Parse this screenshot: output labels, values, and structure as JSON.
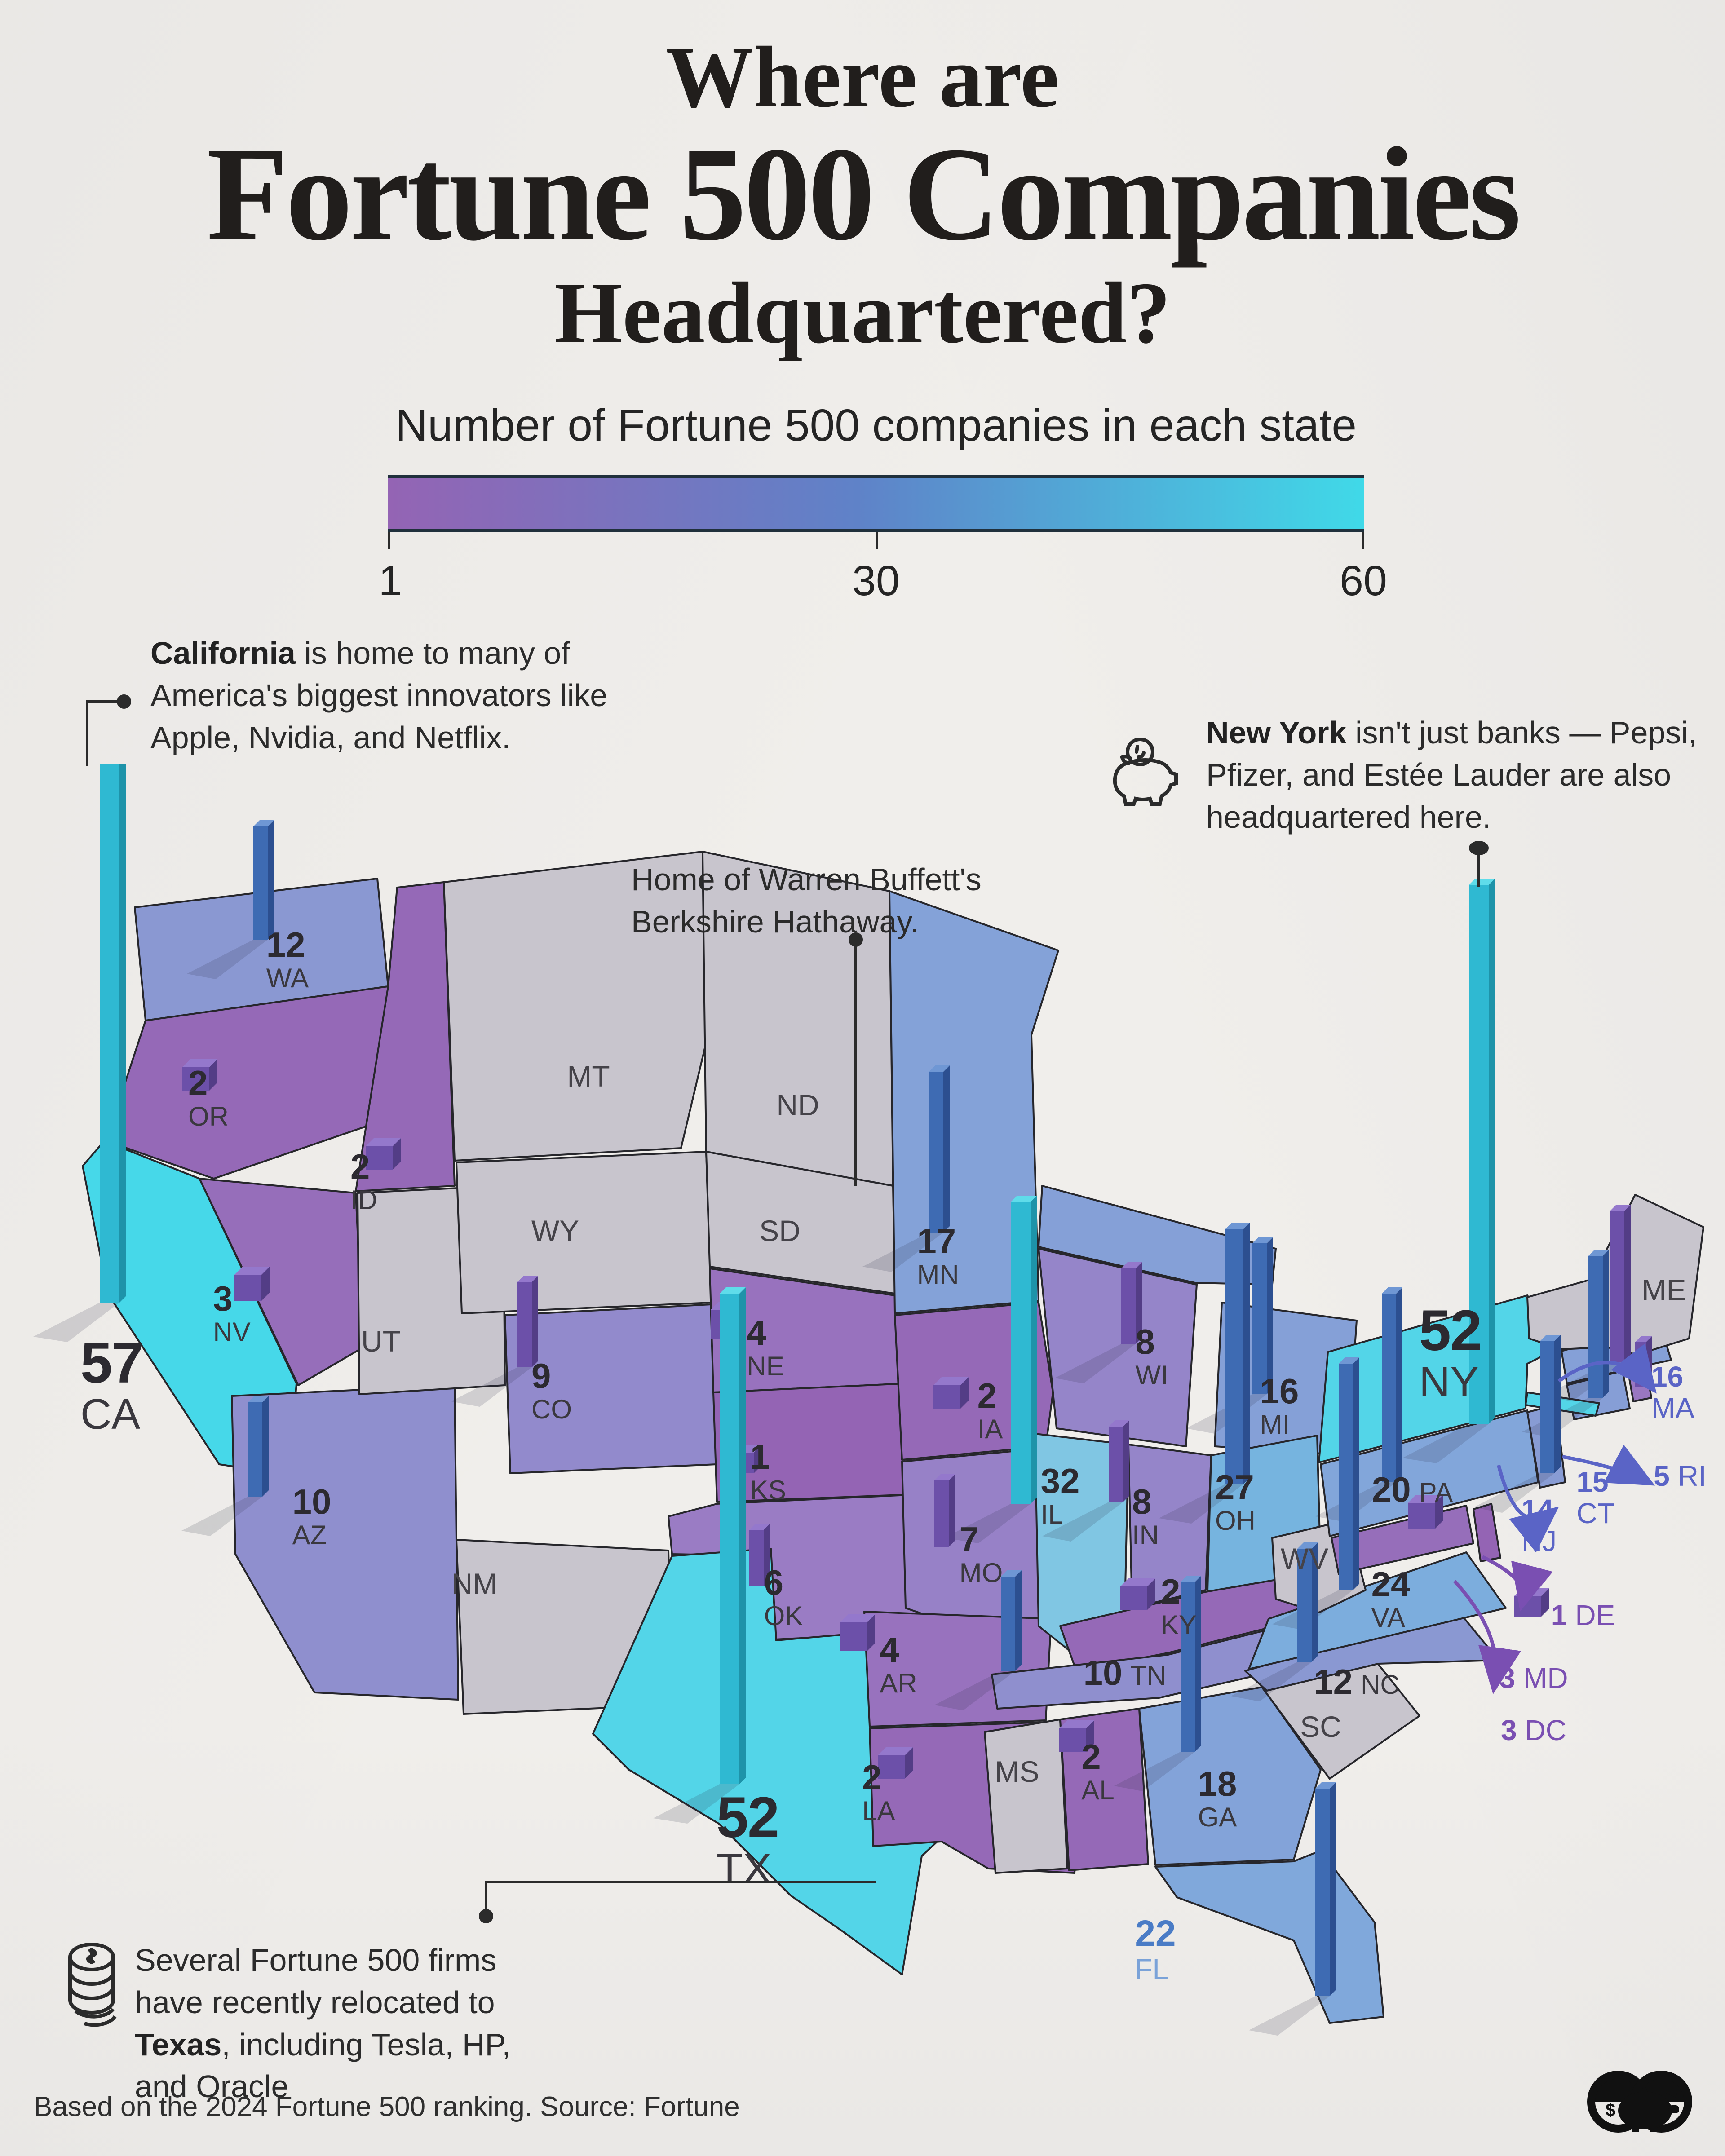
{
  "title": {
    "line1": "Where are",
    "line2": "Fortune 500 Companies",
    "line3": "Headquartered?"
  },
  "legend": {
    "label": "Number of Fortune 500 companies in each state",
    "tick_min": "1",
    "tick_mid": "30",
    "tick_max": "60",
    "gradient_start": "#9464B4",
    "gradient_mid": "#5F82C8",
    "gradient_end": "#40D9E8"
  },
  "annotations": {
    "california": {
      "lead": "California",
      "rest": " is home to many of America's biggest innovators like Apple, Nvidia, and Netflix."
    },
    "new_york": {
      "lead": "New York",
      "rest": " isn't just banks — Pepsi, Pfizer, and Estée Lauder are also headquartered here.",
      "icon": "piggy-bank"
    },
    "nebraska": {
      "text": "Home of Warren Buffett's Berkshire Hathaway."
    },
    "texas": {
      "pre": "Several Fortune 500 firms have recently relocated to ",
      "lead": "Texas",
      "post": ", including Tesla, HP, and Oracle",
      "icon": "coin-stack"
    }
  },
  "footer": {
    "source": "Based on the 2024 Fortune 500 ranking. Source: Fortune",
    "logo": "binoculars-piggy-bank-logo"
  },
  "colors": {
    "background": "#F0EEEB",
    "title": "#211E1C",
    "text": "#2B2B2B",
    "gray_state": "#C8C5CD",
    "state_border": "#26262B",
    "accent_blue": "#5A64C6",
    "accent_purple": "#7A4FB2",
    "fl_blue": "#4A7CC6",
    "bar_purple": "#6C50A9",
    "bar_blue": "#3E6BB3",
    "bar_cyan": "#2FB9D2"
  },
  "chart_data": {
    "type": "choropleth-3d-bar-map",
    "region": "United States",
    "title": "Number of Fortune 500 companies in each state",
    "colorbar": {
      "min": 1,
      "mid": 30,
      "max": 60,
      "min_color": "#9464B4",
      "max_color": "#40D9E8"
    },
    "states": [
      {
        "abbr": "WA",
        "value": 12
      },
      {
        "abbr": "OR",
        "value": 2
      },
      {
        "abbr": "ID",
        "value": 2
      },
      {
        "abbr": "NV",
        "value": 3
      },
      {
        "abbr": "CA",
        "value": 57
      },
      {
        "abbr": "AZ",
        "value": 10
      },
      {
        "abbr": "UT",
        "value": null
      },
      {
        "abbr": "MT",
        "value": null
      },
      {
        "abbr": "WY",
        "value": null
      },
      {
        "abbr": "CO",
        "value": 9
      },
      {
        "abbr": "NM",
        "value": null
      },
      {
        "abbr": "ND",
        "value": null
      },
      {
        "abbr": "SD",
        "value": null
      },
      {
        "abbr": "NE",
        "value": 4
      },
      {
        "abbr": "KS",
        "value": 1
      },
      {
        "abbr": "OK",
        "value": 6
      },
      {
        "abbr": "TX",
        "value": 52
      },
      {
        "abbr": "MN",
        "value": 17
      },
      {
        "abbr": "IA",
        "value": 2
      },
      {
        "abbr": "MO",
        "value": 7
      },
      {
        "abbr": "AR",
        "value": 4
      },
      {
        "abbr": "LA",
        "value": 2
      },
      {
        "abbr": "WI",
        "value": 8
      },
      {
        "abbr": "IL",
        "value": 32
      },
      {
        "abbr": "MI",
        "value": 16
      },
      {
        "abbr": "IN",
        "value": 8
      },
      {
        "abbr": "OH",
        "value": 27
      },
      {
        "abbr": "KY",
        "value": 2
      },
      {
        "abbr": "TN",
        "value": 10
      },
      {
        "abbr": "MS",
        "value": null
      },
      {
        "abbr": "AL",
        "value": 2
      },
      {
        "abbr": "GA",
        "value": 18
      },
      {
        "abbr": "FL",
        "value": 22
      },
      {
        "abbr": "SC",
        "value": null
      },
      {
        "abbr": "NC",
        "value": 12
      },
      {
        "abbr": "VA",
        "value": 24
      },
      {
        "abbr": "WV",
        "value": null
      },
      {
        "abbr": "PA",
        "value": 20
      },
      {
        "abbr": "NY",
        "value": 52
      },
      {
        "abbr": "NJ",
        "value": 14
      },
      {
        "abbr": "CT",
        "value": 15
      },
      {
        "abbr": "RI",
        "value": 5
      },
      {
        "abbr": "MA",
        "value": 16
      },
      {
        "abbr": "ME",
        "value": null
      },
      {
        "abbr": "DE",
        "value": 1
      },
      {
        "abbr": "MD",
        "value": 3
      },
      {
        "abbr": "DC",
        "value": 3
      }
    ]
  }
}
